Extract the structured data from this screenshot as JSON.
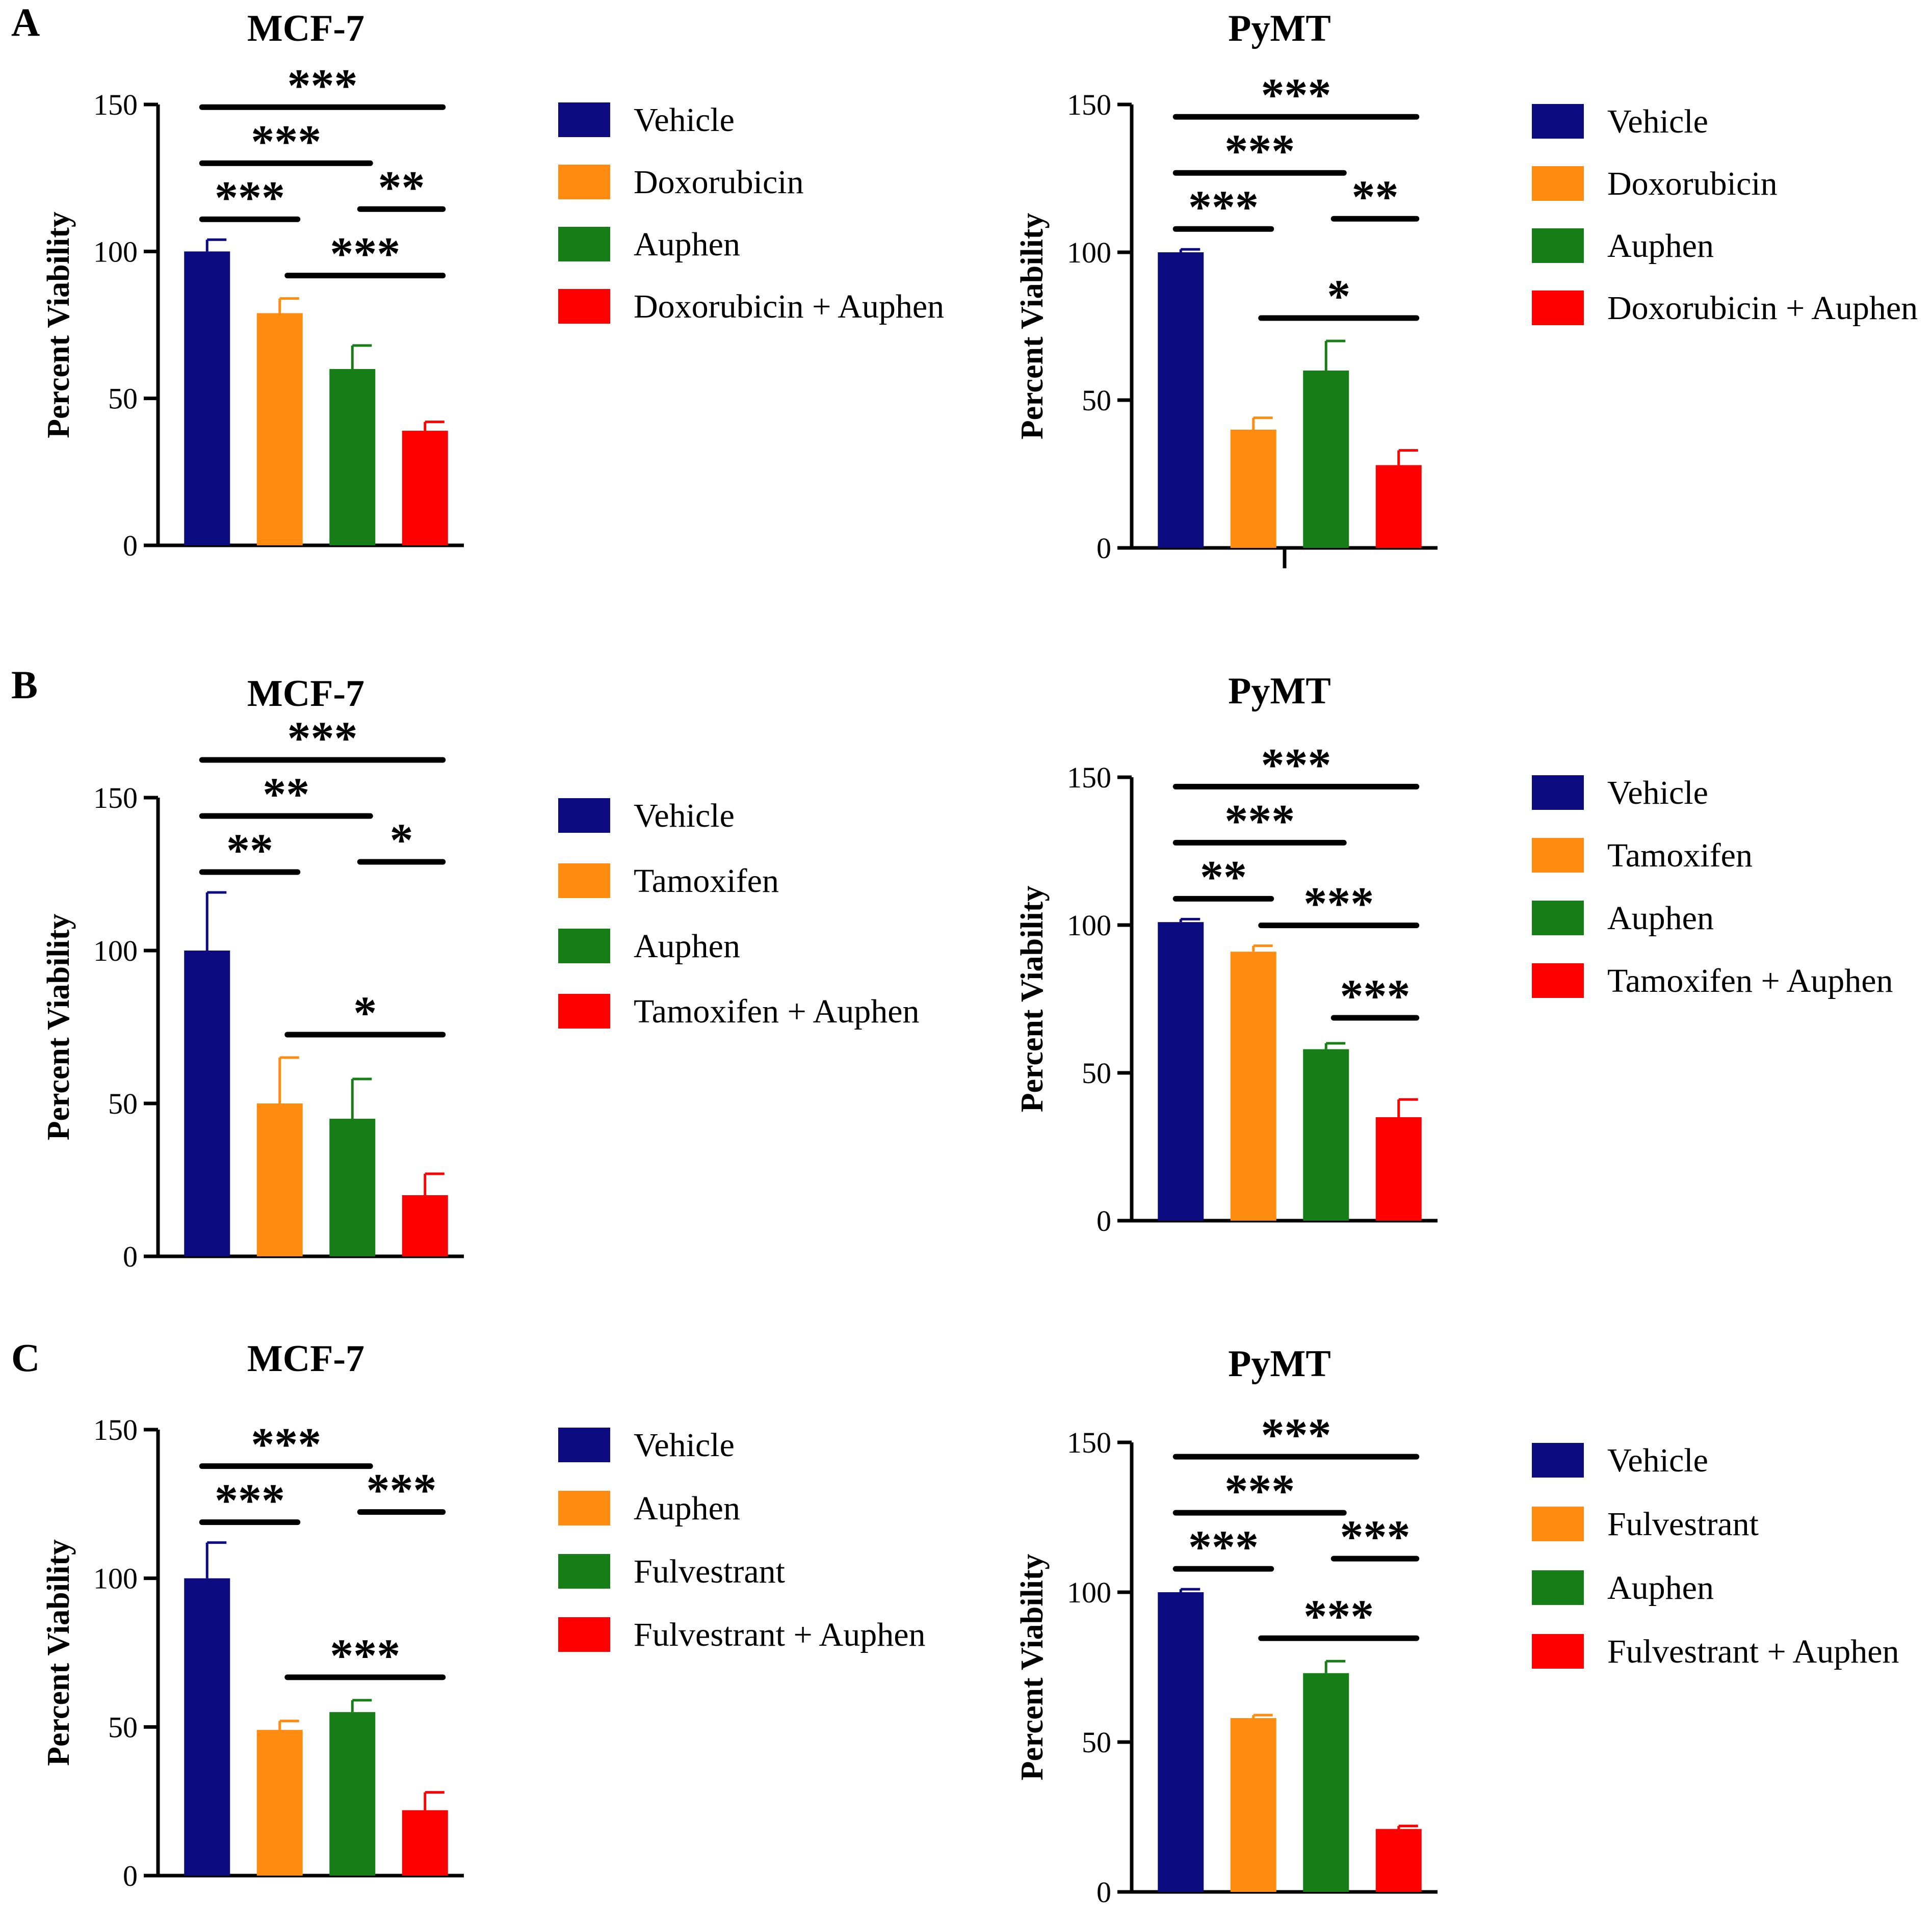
{
  "panels": [
    {
      "label": "A",
      "legend": [
        "Vehicle",
        "Doxorubicin",
        "Auphen",
        "Doxorubicin + Auphen"
      ],
      "charts": [
        {
          "type": "bar",
          "cell": "MCF-7",
          "title": "MCF-7",
          "ylabel": "Percent Viability",
          "ylim": [
            0,
            150
          ],
          "yticks": [
            "0",
            "50",
            "100",
            "150"
          ],
          "categories": [
            "Vehicle",
            "Doxorubicin",
            "Auphen",
            "Doxorubicin + Auphen"
          ],
          "values": [
            100,
            79,
            60,
            39
          ],
          "errors": [
            4,
            5,
            8,
            3
          ],
          "significance": [
            {
              "from": 0,
              "to": 1,
              "label": "***",
              "level": 0
            },
            {
              "from": 0,
              "to": 2,
              "label": "***",
              "level": 1
            },
            {
              "from": 0,
              "to": 3,
              "label": "***",
              "level": 2
            },
            {
              "from": 2,
              "to": 3,
              "label": "**",
              "level": 0
            },
            {
              "from": 1,
              "to": 3,
              "label": "***",
              "level": -1
            }
          ]
        },
        {
          "type": "bar",
          "cell": "PyMT",
          "title": "PyMT",
          "ylabel": "Percent Viability",
          "ylim": [
            0,
            150
          ],
          "yticks": [
            "0",
            "50",
            "100",
            "150"
          ],
          "categories": [
            "Vehicle",
            "Doxorubicin",
            "Auphen",
            "Doxorubicin + Auphen"
          ],
          "values": [
            100,
            40,
            60,
            28
          ],
          "errors": [
            1,
            4,
            10,
            5
          ],
          "significance": [
            {
              "from": 0,
              "to": 1,
              "label": "***",
              "level": 0
            },
            {
              "from": 0,
              "to": 2,
              "label": "***",
              "level": 1
            },
            {
              "from": 0,
              "to": 3,
              "label": "***",
              "level": 2
            },
            {
              "from": 2,
              "to": 3,
              "label": "**",
              "level": 0
            },
            {
              "from": 1,
              "to": 3,
              "label": "*",
              "level": -1
            }
          ]
        }
      ]
    },
    {
      "label": "B",
      "legend": [
        "Vehicle",
        "Tamoxifen",
        "Auphen",
        "Tamoxifen + Auphen"
      ],
      "charts": [
        {
          "type": "bar",
          "cell": "MCF-7",
          "title": "MCF-7",
          "ylabel": "Percent Viability",
          "ylim": [
            0,
            150
          ],
          "yticks": [
            "0",
            "50",
            "100",
            "150"
          ],
          "categories": [
            "Vehicle",
            "Tamoxifen",
            "Auphen",
            "Tamoxifen + Auphen"
          ],
          "values": [
            100,
            50,
            45,
            20
          ],
          "errors": [
            19,
            15,
            13,
            7
          ],
          "significance": [
            {
              "from": 0,
              "to": 1,
              "label": "**",
              "level": 0
            },
            {
              "from": 0,
              "to": 2,
              "label": "**",
              "level": 1
            },
            {
              "from": 0,
              "to": 3,
              "label": "***",
              "level": 2
            },
            {
              "from": 2,
              "to": 3,
              "label": "*",
              "level": 0
            },
            {
              "from": 1,
              "to": 3,
              "label": "*",
              "level": -1
            }
          ]
        },
        {
          "type": "bar",
          "cell": "PyMT",
          "title": "PyMT",
          "ylabel": "Percent Viability",
          "ylim": [
            0,
            150
          ],
          "yticks": [
            "0",
            "50",
            "100",
            "150"
          ],
          "categories": [
            "Vehicle",
            "Tamoxifen",
            "Auphen",
            "Tamoxifen + Auphen"
          ],
          "values": [
            101,
            91,
            58,
            35
          ],
          "errors": [
            1,
            2,
            2,
            6
          ],
          "significance": [
            {
              "from": 0,
              "to": 1,
              "label": "**",
              "level": 0
            },
            {
              "from": 0,
              "to": 2,
              "label": "***",
              "level": 1
            },
            {
              "from": 0,
              "to": 3,
              "label": "***",
              "level": 2
            },
            {
              "from": 1,
              "to": 3,
              "label": "***",
              "level": 0.3
            },
            {
              "from": 2,
              "to": 3,
              "label": "***",
              "level": -0.6
            }
          ]
        }
      ]
    },
    {
      "label": "C",
      "legend": [
        "Vehicle",
        "Auphen",
        "Fulvestrant",
        "Fulvestrant + Auphen"
      ],
      "legend_pymt": [
        "Vehicle",
        "Fulvestrant",
        "Auphen",
        "Fulvestrant + Auphen"
      ],
      "charts": [
        {
          "type": "bar",
          "cell": "MCF-7",
          "title": "MCF-7",
          "ylabel": "Percent Viability",
          "ylim": [
            0,
            150
          ],
          "yticks": [
            "0",
            "50",
            "100",
            "150"
          ],
          "categories": [
            "Vehicle",
            "Auphen",
            "Fulvestrant",
            "Fulvestrant + Auphen"
          ],
          "values": [
            100,
            49,
            55,
            22
          ],
          "errors": [
            12,
            3,
            4,
            6
          ],
          "significance": [
            {
              "from": 0,
              "to": 1,
              "label": "***",
              "level": 0
            },
            {
              "from": 0,
              "to": 2,
              "label": "***",
              "level": 1
            },
            {
              "from": 2,
              "to": 3,
              "label": "***",
              "level": 0
            },
            {
              "from": 1,
              "to": 3,
              "label": "***",
              "level": -1
            }
          ]
        },
        {
          "type": "bar",
          "cell": "PyMT",
          "title": "PyMT",
          "ylabel": "Percent Viability",
          "ylim": [
            0,
            150
          ],
          "yticks": [
            "0",
            "50",
            "100",
            "150"
          ],
          "categories": [
            "Vehicle",
            "Fulvestrant",
            "Auphen",
            "Fulvestrant + Auphen"
          ],
          "values": [
            100,
            58,
            73,
            21
          ],
          "errors": [
            1,
            1,
            4,
            1
          ],
          "significance": [
            {
              "from": 0,
              "to": 1,
              "label": "***",
              "level": 0
            },
            {
              "from": 0,
              "to": 2,
              "label": "***",
              "level": 1
            },
            {
              "from": 0,
              "to": 3,
              "label": "***",
              "level": 2
            },
            {
              "from": 2,
              "to": 3,
              "label": "***",
              "level": 0
            },
            {
              "from": 1,
              "to": 3,
              "label": "***",
              "level": -1
            }
          ]
        }
      ]
    }
  ],
  "colors": {
    "vehicle": "#0c0c80",
    "drug": "#ff8c10",
    "auphen": "#177d17",
    "combo": "#ff0000"
  }
}
